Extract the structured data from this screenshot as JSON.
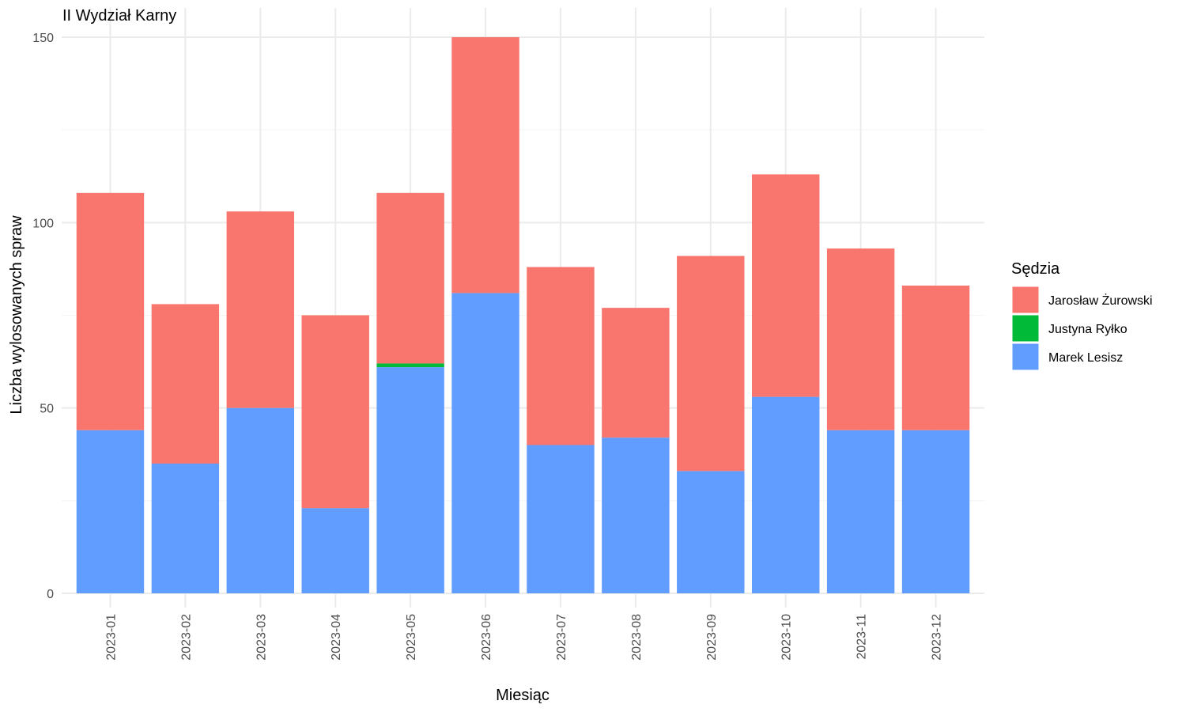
{
  "chart_data": {
    "type": "bar",
    "stacked": true,
    "title": "II Wydział Karny",
    "xlabel": "Miesiąc",
    "ylabel": "Liczba wylosowanych spraw",
    "ylim": [
      0,
      150
    ],
    "yticks": [
      0,
      50,
      100,
      150
    ],
    "grid": true,
    "legend_position": "right",
    "legend_title": "Sędzia",
    "categories": [
      "2023-01",
      "2023-02",
      "2023-03",
      "2023-04",
      "2023-05",
      "2023-06",
      "2023-07",
      "2023-08",
      "2023-09",
      "2023-10",
      "2023-11",
      "2023-12"
    ],
    "series": [
      {
        "name": "Marek Lesisz",
        "color": "#619CFF",
        "values": [
          44,
          35,
          50,
          23,
          61,
          81,
          40,
          42,
          33,
          53,
          44,
          44
        ]
      },
      {
        "name": "Justyna Ryłko",
        "color": "#00BA38",
        "values": [
          0,
          0,
          0,
          0,
          1,
          0,
          0,
          0,
          0,
          0,
          0,
          0
        ]
      },
      {
        "name": "Jarosław Żurowski",
        "color": "#F8766D",
        "values": [
          64,
          43,
          53,
          52,
          46,
          69,
          48,
          35,
          58,
          60,
          49,
          39
        ]
      }
    ],
    "legend_order": [
      "Jarosław Żurowski",
      "Justyna Ryłko",
      "Marek Lesisz"
    ]
  }
}
